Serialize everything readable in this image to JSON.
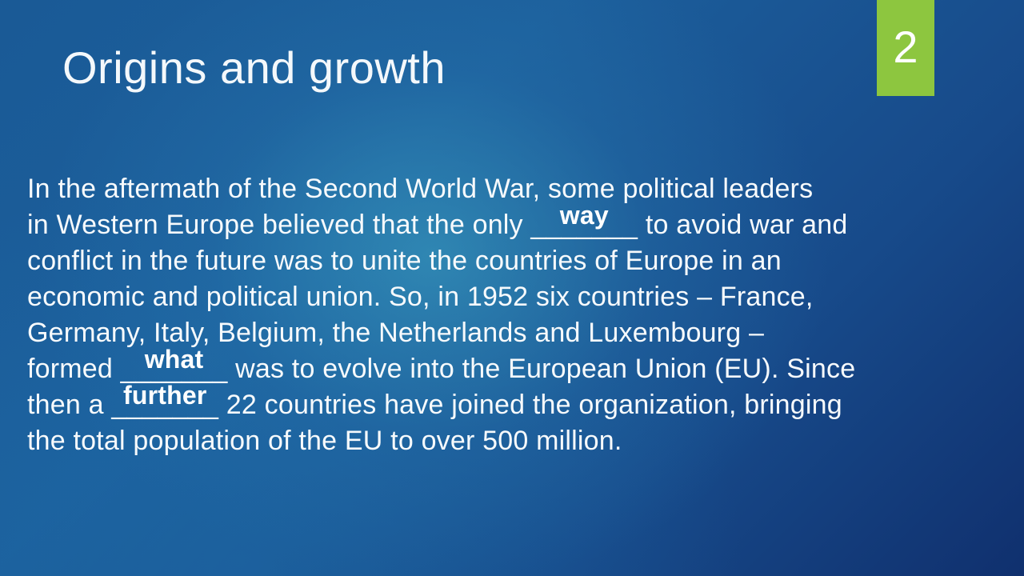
{
  "slide": {
    "title": "Origins and growth",
    "number": "2"
  },
  "body": {
    "l1": "In the aftermath of the Second World War, some political leaders",
    "l2a": "in Western Europe believed that the only ",
    "blank1_line": "_______",
    "blank1_answer": "way",
    "l2b": " to avoid war and",
    "l3": "conflict in the future was to unite the countries of Europe in an",
    "l4": "economic and political union. So, in 1952 six countries – France,",
    "l5": "Germany, Italy, Belgium, the Netherlands and Luxembourg –",
    "l6a": "formed ",
    "blank2_line": "_______",
    "blank2_answer": "what",
    "l6b": " was to evolve into the European Union (EU). Since",
    "l7a": "then a ",
    "blank3_line": "_______",
    "blank3_answer": "further",
    "l7b": " 22 countries have joined the organization, bringing",
    "l8": "the total population of the EU to over 500 million."
  }
}
